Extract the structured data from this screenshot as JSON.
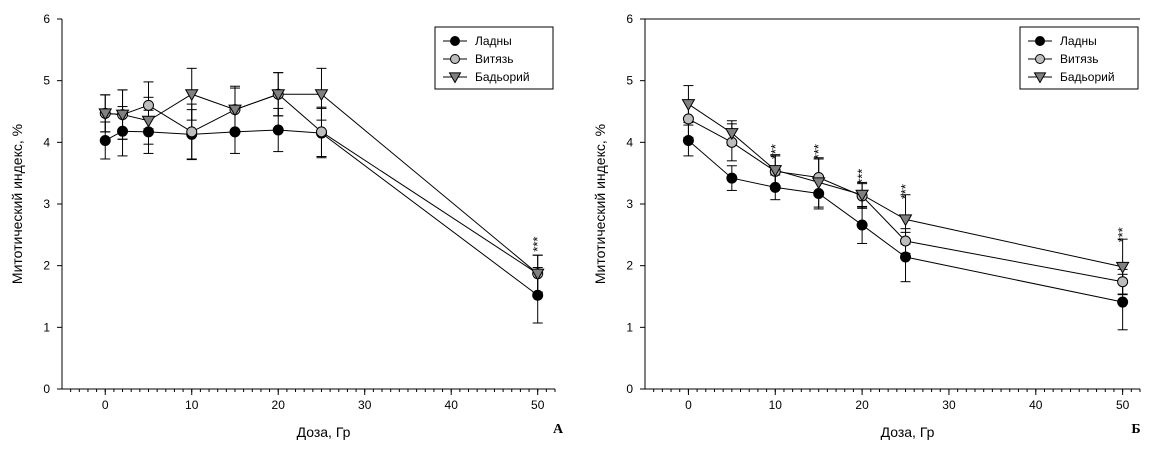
{
  "chart_data": [
    {
      "type": "line",
      "panel_label": "А",
      "xlabel": "Доза, Гр",
      "ylabel": "Митотический индекс, %",
      "xlim": [
        -5,
        52
      ],
      "ylim": [
        0,
        6
      ],
      "x_ticks": [
        "0",
        "10",
        "20",
        "30",
        "40",
        "50"
      ],
      "y_ticks": [
        "0",
        "1",
        "2",
        "3",
        "4",
        "5",
        "6"
      ],
      "legend_position": "top-right",
      "series": [
        {
          "name": "Ладны",
          "marker": "circle",
          "fill": "#000000",
          "x": [
            0,
            2,
            5,
            10,
            15,
            20,
            25,
            50
          ],
          "y": [
            4.03,
            4.18,
            4.17,
            4.13,
            4.17,
            4.2,
            4.15,
            1.52
          ],
          "err": [
            0.3,
            0.4,
            0.35,
            0.4,
            0.35,
            0.35,
            0.4,
            0.45
          ]
        },
        {
          "name": "Витязь",
          "marker": "circle",
          "fill": "#bdbdbd",
          "x": [
            0,
            2,
            5,
            10,
            15,
            20,
            25,
            50
          ],
          "y": [
            4.47,
            4.45,
            4.6,
            4.17,
            4.53,
            4.78,
            4.17,
            1.87
          ],
          "err": [
            0.3,
            0.4,
            0.38,
            0.45,
            0.35,
            0.35,
            0.4,
            0.3
          ]
        },
        {
          "name": "Бадьорий",
          "marker": "triangle-down",
          "fill": "#808080",
          "x": [
            0,
            2,
            5,
            10,
            15,
            20,
            25,
            50
          ],
          "y": [
            4.47,
            4.45,
            4.35,
            4.78,
            4.53,
            4.78,
            4.78,
            1.87
          ],
          "err": [
            0.3,
            0.4,
            0.38,
            0.42,
            0.38,
            0.35,
            0.42,
            0.3
          ]
        }
      ],
      "annotations": [
        {
          "x": 50,
          "y": 2.35,
          "text": "***"
        }
      ]
    },
    {
      "type": "line",
      "panel_label": "Б",
      "xlabel": "Доза, Гр",
      "ylabel": "Митотический индекс, %",
      "xlim": [
        -5,
        52
      ],
      "ylim": [
        0,
        6
      ],
      "x_ticks": [
        "0",
        "10",
        "20",
        "30",
        "40",
        "50"
      ],
      "y_ticks": [
        "0",
        "1",
        "2",
        "3",
        "4",
        "5",
        "6"
      ],
      "legend_position": "top-right",
      "series": [
        {
          "name": "Ладны",
          "marker": "circle",
          "fill": "#000000",
          "x": [
            0,
            5,
            10,
            15,
            20,
            25,
            50
          ],
          "y": [
            4.03,
            3.42,
            3.27,
            3.17,
            2.66,
            2.14,
            1.41
          ],
          "err": [
            0.25,
            0.2,
            0.2,
            0.25,
            0.3,
            0.4,
            0.45
          ]
        },
        {
          "name": "Витязь",
          "marker": "circle",
          "fill": "#bdbdbd",
          "x": [
            0,
            5,
            10,
            15,
            20,
            25,
            50
          ],
          "y": [
            4.38,
            4.0,
            3.53,
            3.43,
            3.13,
            2.4,
            1.74
          ],
          "err": [
            0.3,
            0.3,
            0.25,
            0.3,
            0.2,
            0.2,
            0.2
          ]
        },
        {
          "name": "Бадьорий",
          "marker": "triangle-down",
          "fill": "#808080",
          "x": [
            0,
            5,
            10,
            15,
            20,
            25,
            50
          ],
          "y": [
            4.62,
            4.15,
            3.55,
            3.35,
            3.15,
            2.75,
            1.98
          ],
          "err": [
            0.3,
            0.2,
            0.25,
            0.4,
            0.2,
            0.4,
            0.45
          ]
        }
      ],
      "annotations": [
        {
          "x": 10,
          "y": 3.85,
          "text": "***"
        },
        {
          "x": 15,
          "y": 3.85,
          "text": "***"
        },
        {
          "x": 20,
          "y": 3.45,
          "text": "***"
        },
        {
          "x": 25,
          "y": 3.2,
          "text": "***"
        },
        {
          "x": 50,
          "y": 2.5,
          "text": "***"
        }
      ]
    }
  ]
}
